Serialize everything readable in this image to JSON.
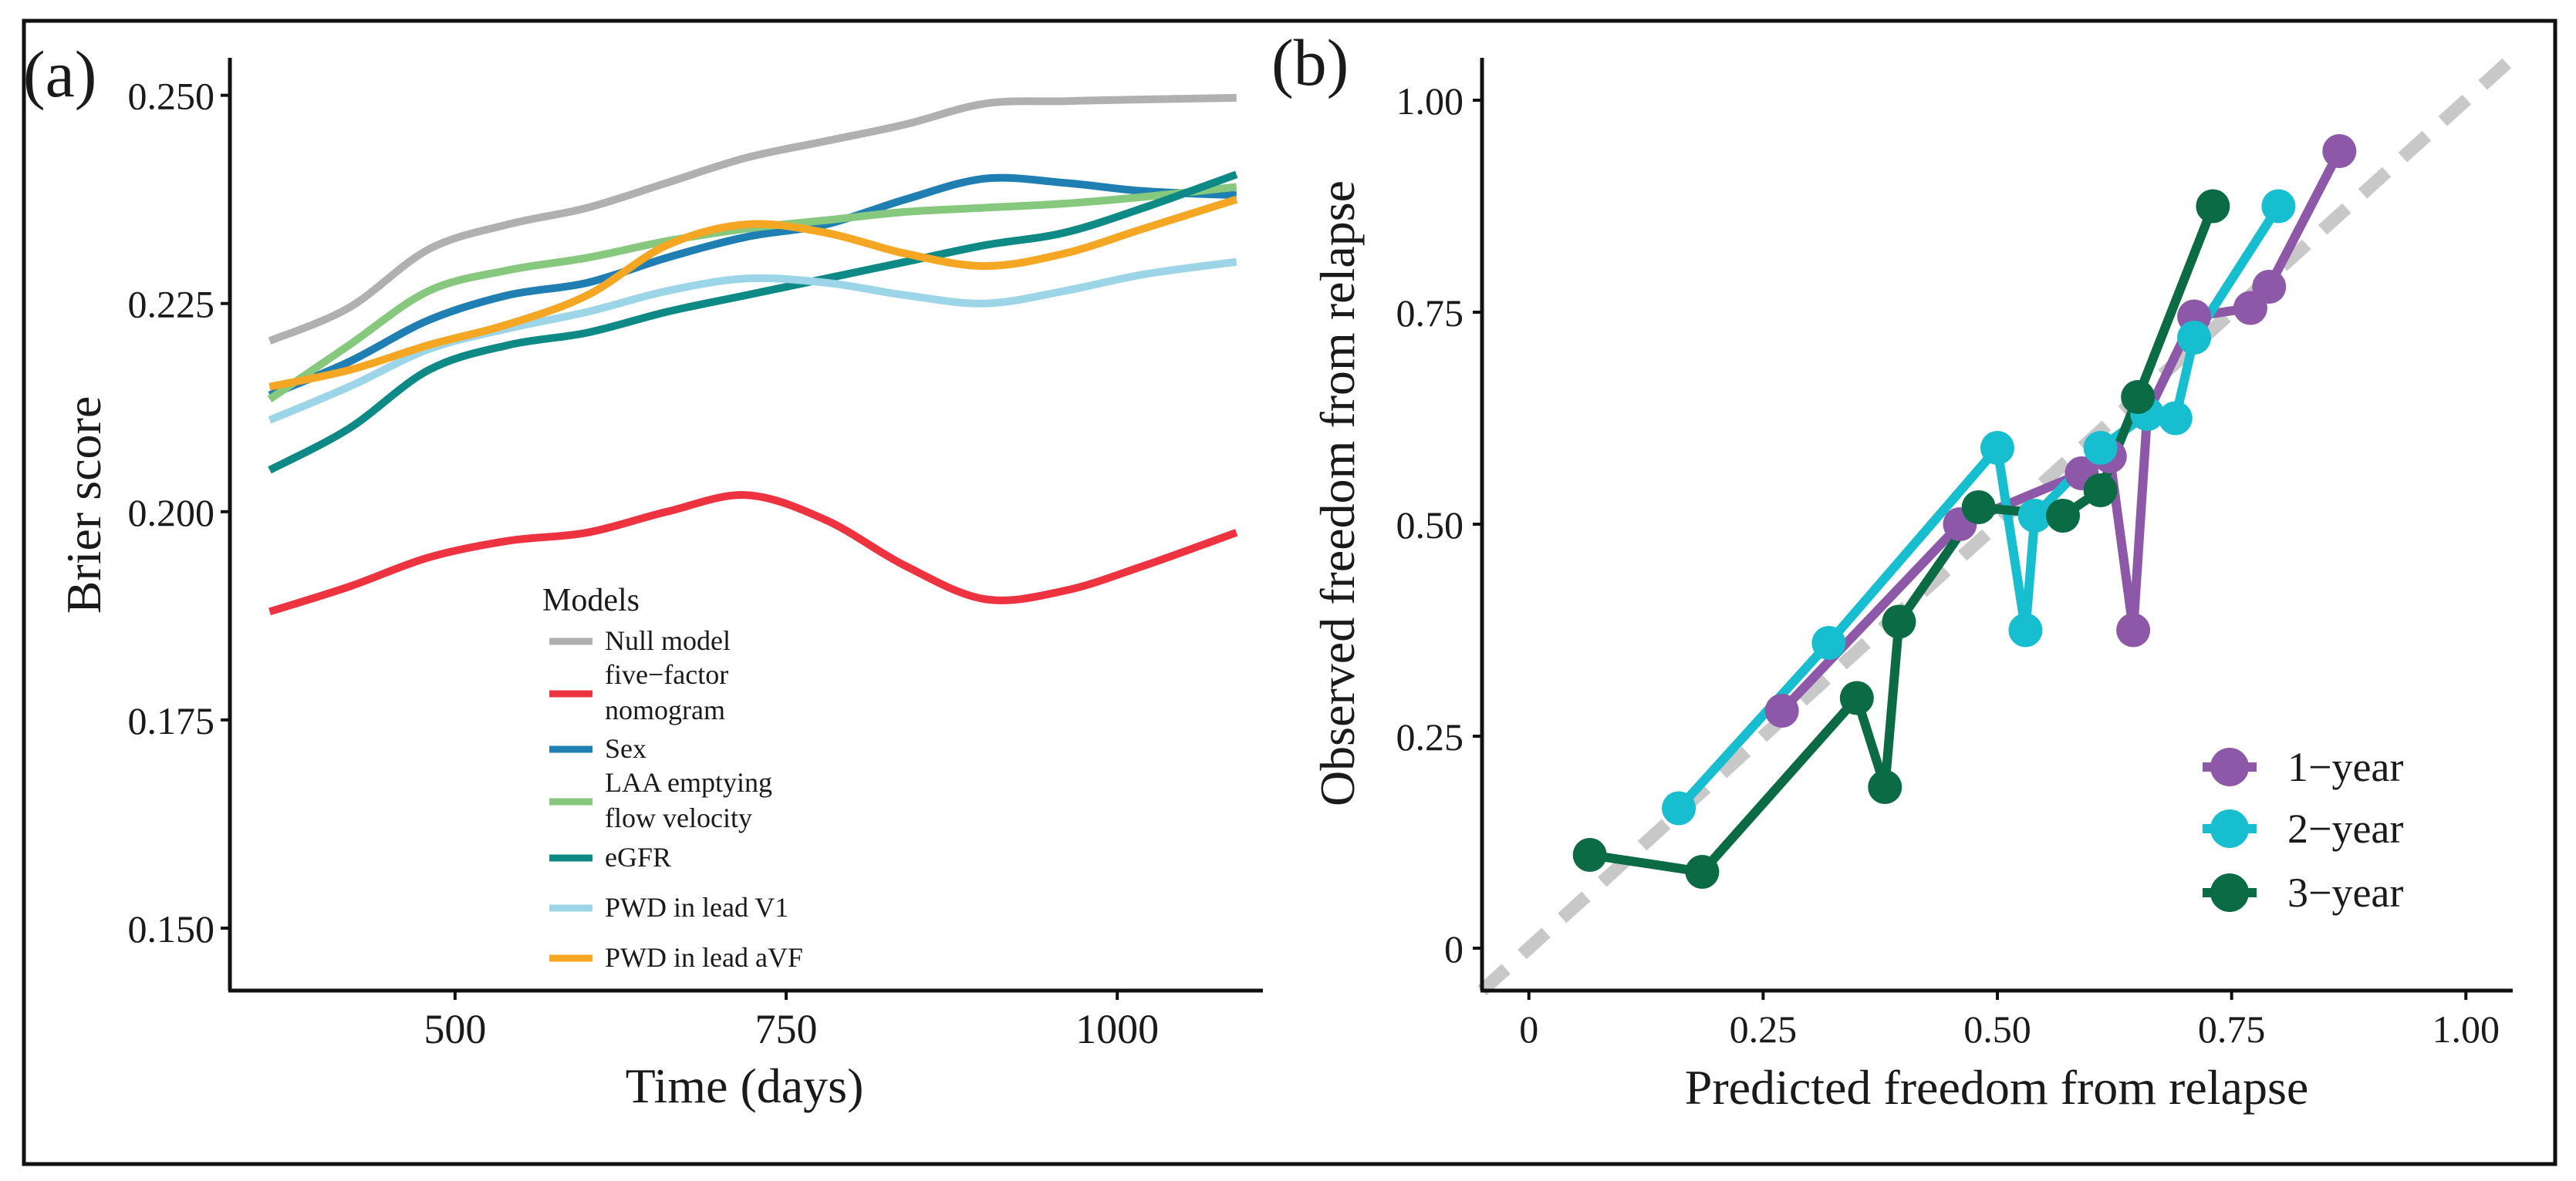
{
  "chart_data": [
    {
      "panel_label": "(a)",
      "type": "line",
      "title": "",
      "xlabel": "Time (days)",
      "ylabel": "Brier score",
      "xlim": [
        330,
        1110
      ],
      "ylim": [
        0.1425,
        0.2545
      ],
      "xticks": [
        500,
        750,
        1000
      ],
      "xtick_labels": [
        "500",
        "750",
        "1000"
      ],
      "yticks": [
        0.15,
        0.175,
        0.2,
        0.225,
        0.25
      ],
      "ytick_labels": [
        "0.150",
        "0.175",
        "0.200",
        "0.225",
        "0.250"
      ],
      "legend_title": "Models",
      "legend_position": "center-bottom",
      "series": [
        {
          "name": "Null model",
          "legend_lines": [
            "Null model"
          ],
          "color": "#b0b0b0",
          "x": [
            360,
            420,
            480,
            540,
            600,
            660,
            720,
            780,
            840,
            900,
            960,
            1020,
            1090
          ],
          "y": [
            0.2205,
            0.2245,
            0.2315,
            0.2345,
            0.2365,
            0.2395,
            0.2425,
            0.2445,
            0.2465,
            0.249,
            0.2493,
            0.2495,
            0.2497
          ]
        },
        {
          "name": "five−factor nomogram",
          "legend_lines": [
            "five−factor",
            "nomogram"
          ],
          "color": "#ee3340",
          "x": [
            360,
            420,
            480,
            540,
            600,
            660,
            720,
            780,
            840,
            900,
            960,
            1020,
            1090
          ],
          "y": [
            0.188,
            0.191,
            0.1945,
            0.1965,
            0.1975,
            0.2,
            0.202,
            0.199,
            0.1935,
            0.1895,
            0.1905,
            0.1935,
            0.1975
          ]
        },
        {
          "name": "Sex",
          "legend_lines": [
            "Sex"
          ],
          "color": "#1f7fb3",
          "x": [
            360,
            420,
            480,
            540,
            600,
            660,
            720,
            780,
            840,
            900,
            960,
            1020,
            1090
          ],
          "y": [
            0.214,
            0.218,
            0.223,
            0.226,
            0.2275,
            0.2305,
            0.233,
            0.2345,
            0.2375,
            0.24,
            0.2395,
            0.2385,
            0.238
          ]
        },
        {
          "name": "LAA emptying flow velocity",
          "legend_lines": [
            "LAA emptying",
            "flow velocity"
          ],
          "color": "#86c87d",
          "x": [
            360,
            420,
            480,
            540,
            600,
            660,
            720,
            780,
            840,
            900,
            960,
            1020,
            1090
          ],
          "y": [
            0.2135,
            0.22,
            0.2265,
            0.229,
            0.2305,
            0.2325,
            0.234,
            0.235,
            0.236,
            0.2365,
            0.237,
            0.2378,
            0.239
          ]
        },
        {
          "name": "eGFR",
          "legend_lines": [
            "eGFR"
          ],
          "color": "#0e8a86",
          "x": [
            360,
            420,
            480,
            540,
            600,
            660,
            720,
            780,
            840,
            900,
            960,
            1020,
            1090
          ],
          "y": [
            0.205,
            0.21,
            0.217,
            0.22,
            0.2215,
            0.224,
            0.226,
            0.228,
            0.23,
            0.232,
            0.2335,
            0.2365,
            0.2405
          ]
        },
        {
          "name": "PWD in lead V1",
          "legend_lines": [
            "PWD in lead V1"
          ],
          "color": "#9dd5e8",
          "x": [
            360,
            420,
            480,
            540,
            600,
            660,
            720,
            780,
            840,
            900,
            960,
            1020,
            1090
          ],
          "y": [
            0.211,
            0.215,
            0.2195,
            0.222,
            0.224,
            0.2265,
            0.228,
            0.2275,
            0.226,
            0.225,
            0.2265,
            0.2285,
            0.23
          ]
        },
        {
          "name": "PWD in lead aVF",
          "legend_lines": [
            "PWD in lead aVF"
          ],
          "color": "#f5a623",
          "x": [
            360,
            420,
            480,
            540,
            600,
            660,
            720,
            780,
            840,
            900,
            960,
            1020,
            1090
          ],
          "y": [
            0.215,
            0.217,
            0.22,
            0.2225,
            0.226,
            0.232,
            0.2345,
            0.2335,
            0.231,
            0.2295,
            0.231,
            0.234,
            0.2375
          ]
        }
      ]
    },
    {
      "panel_label": "(b)",
      "type": "line",
      "title": "",
      "xlabel": "Predicted freedom from relapse",
      "ylabel": "Observed freedom from relapse",
      "xlim": [
        -0.05,
        1.05
      ],
      "ylim": [
        -0.05,
        1.05
      ],
      "xticks": [
        0,
        0.25,
        0.5,
        0.75,
        1.0
      ],
      "xtick_labels": [
        "0",
        "0.25",
        "0.50",
        "0.75",
        "1.00"
      ],
      "yticks": [
        0,
        0.25,
        0.5,
        0.75,
        1.0
      ],
      "ytick_labels": [
        "0",
        "0.25",
        "0.50",
        "0.75",
        "1.00"
      ],
      "reference_line": {
        "x": [
          -0.05,
          1.05
        ],
        "y": [
          -0.05,
          1.05
        ],
        "color": "#c8c8c8",
        "style": "dashed"
      },
      "legend_position": "bottom-right",
      "series": [
        {
          "name": "1−year",
          "color": "#8e58a8",
          "x": [
            0.27,
            0.46,
            0.59,
            0.62,
            0.645,
            0.66,
            0.71,
            0.77,
            0.79,
            0.865
          ],
          "y": [
            0.28,
            0.5,
            0.56,
            0.58,
            0.375,
            0.63,
            0.745,
            0.755,
            0.78,
            0.94
          ]
        },
        {
          "name": "2−year",
          "color": "#17becf",
          "x": [
            0.16,
            0.32,
            0.5,
            0.53,
            0.54,
            0.61,
            0.66,
            0.69,
            0.71,
            0.8
          ],
          "y": [
            0.165,
            0.36,
            0.59,
            0.375,
            0.51,
            0.59,
            0.63,
            0.625,
            0.72,
            0.875
          ]
        },
        {
          "name": "3−year",
          "color": "#0b6b45",
          "x": [
            0.065,
            0.185,
            0.35,
            0.38,
            0.395,
            0.48,
            0.57,
            0.61,
            0.65,
            0.73
          ],
          "y": [
            0.11,
            0.09,
            0.295,
            0.19,
            0.385,
            0.52,
            0.51,
            0.54,
            0.65,
            0.875
          ]
        }
      ]
    }
  ]
}
